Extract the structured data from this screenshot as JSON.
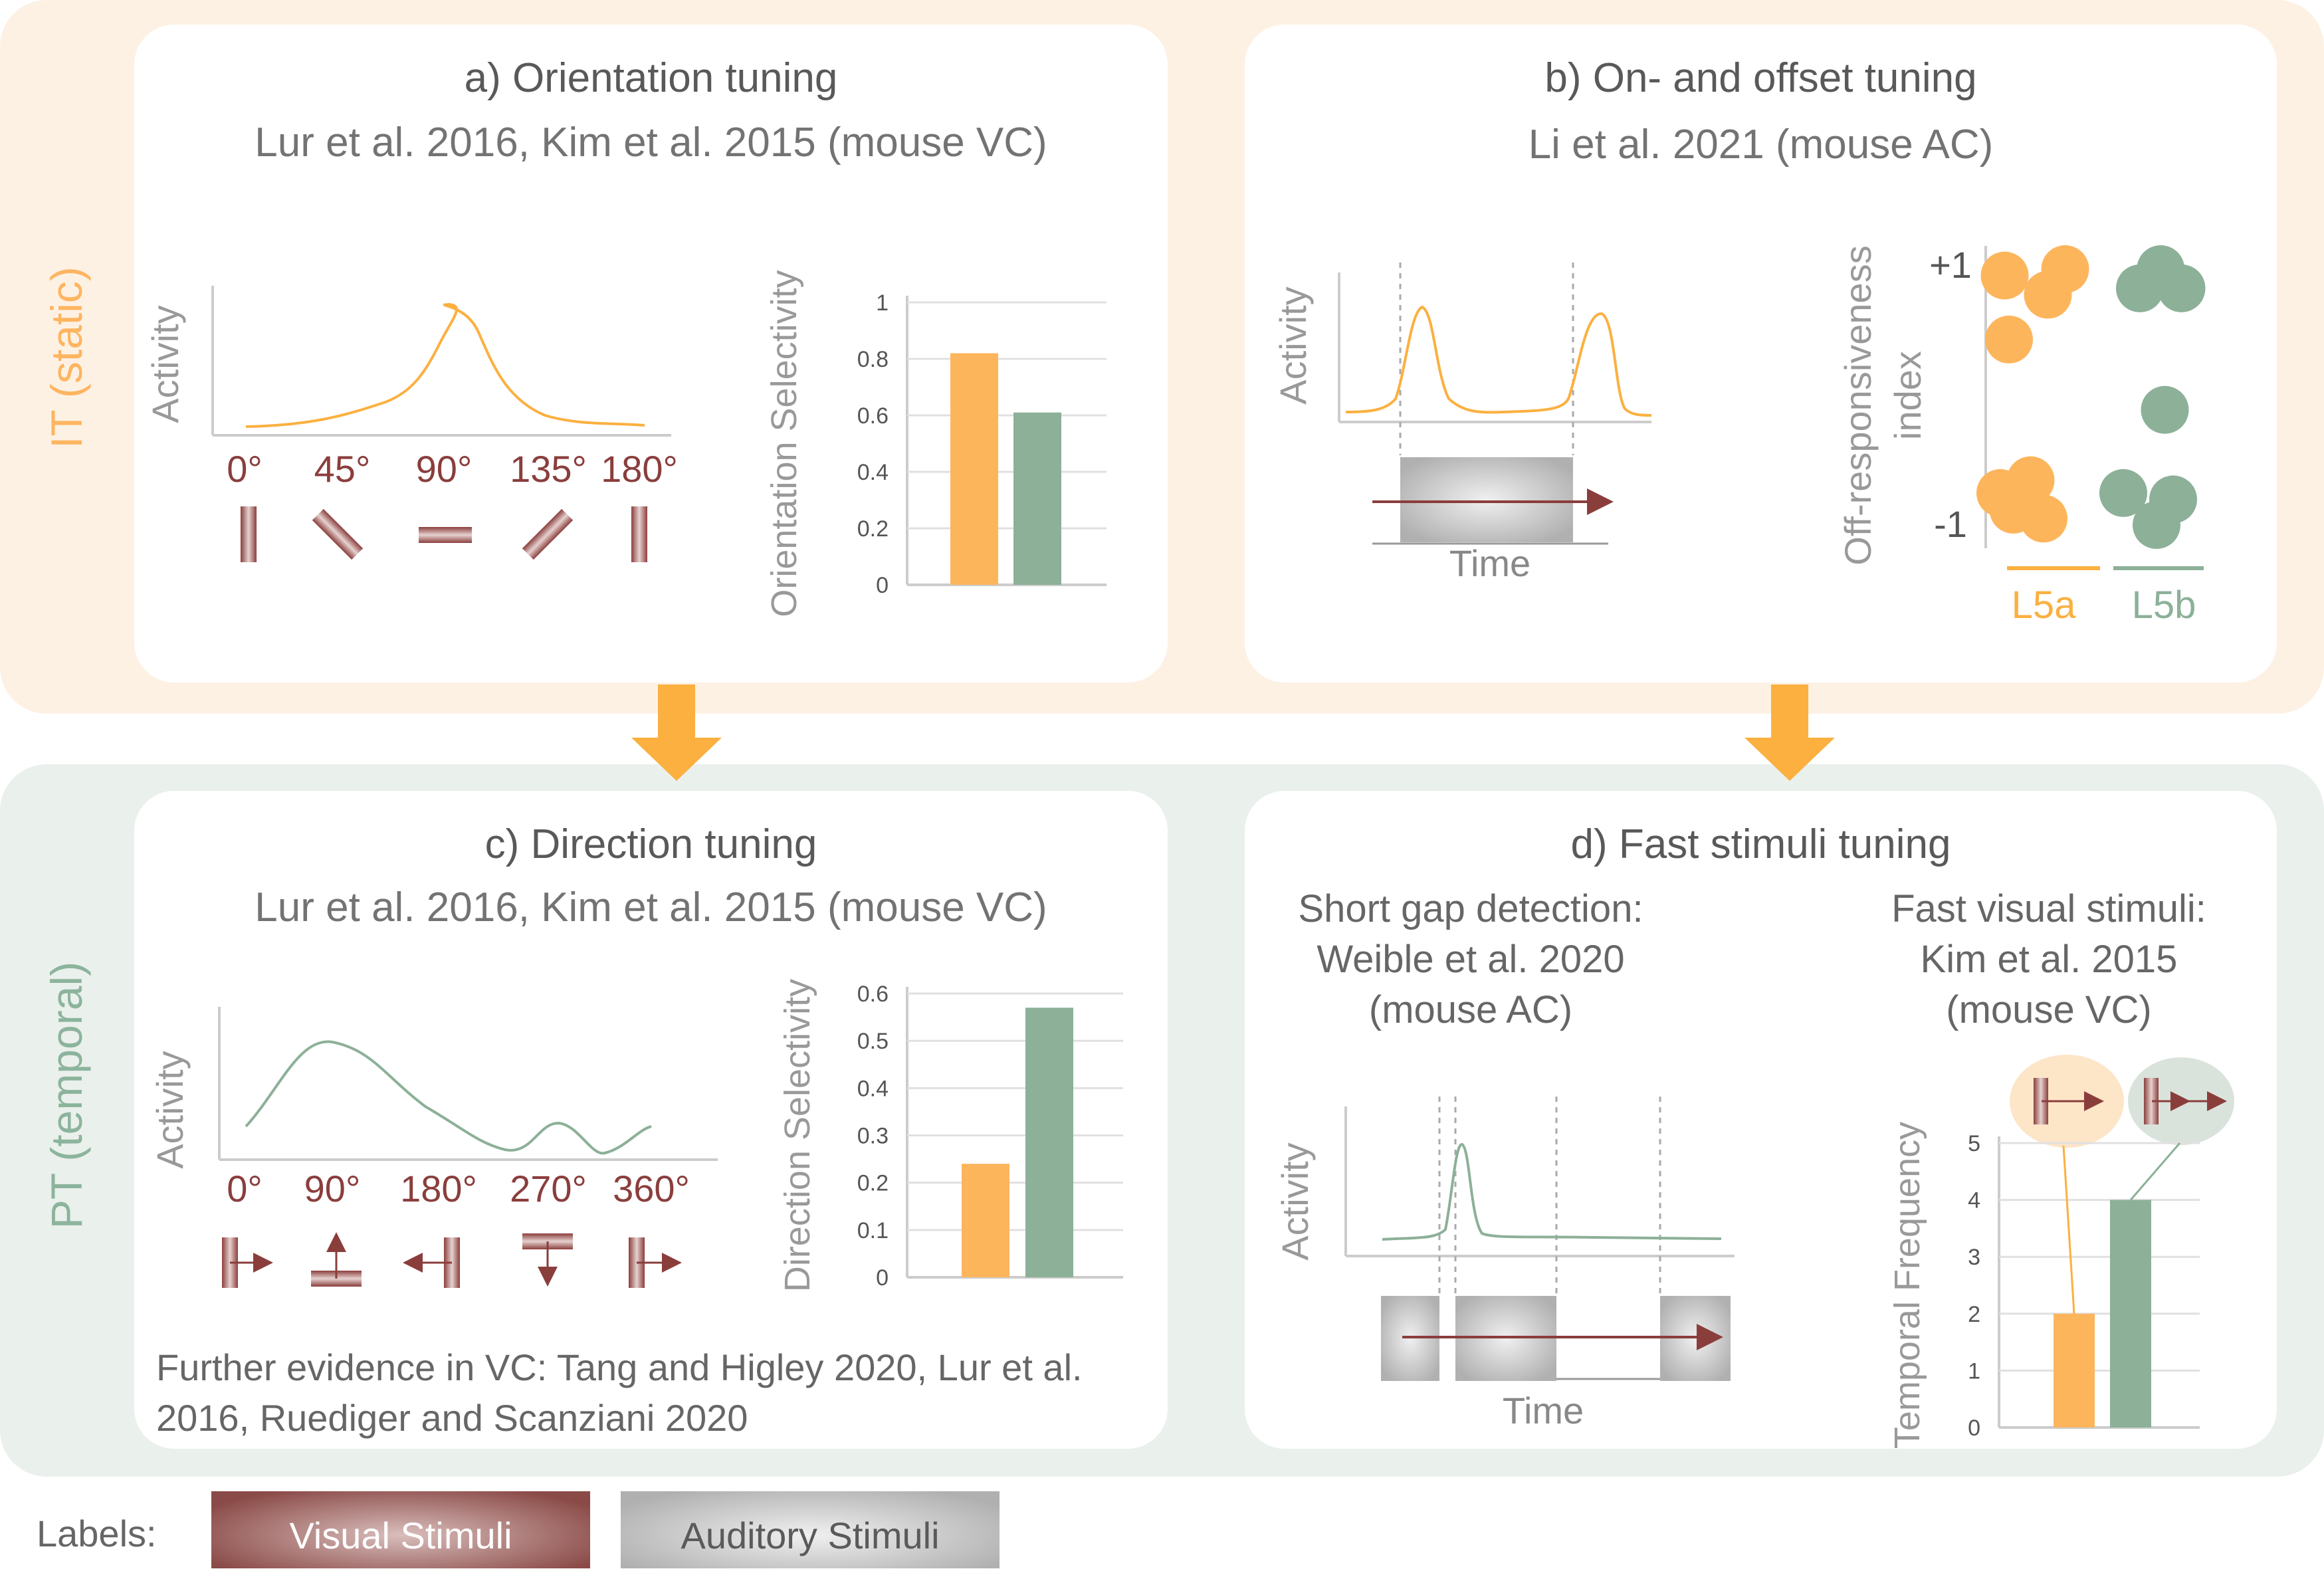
{
  "bands": {
    "it": {
      "label": "IT (static)",
      "color": "#fdb560"
    },
    "pt": {
      "label": "PT (temporal)",
      "color": "#8cb49c"
    }
  },
  "colors": {
    "orange": "#fdb55c",
    "green": "#8cb098",
    "maroon": "#8a3e3c",
    "visual": "#8f5552",
    "auditory": "#b5b5b5"
  },
  "panel_a": {
    "title": "a) Orientation tuning",
    "subtitle": "Lur et al. 2016, Kim et al. 2015 (mouse VC)",
    "curve_ylabel": "Activity",
    "angle_labels": [
      "0°",
      "45°",
      "90°",
      "135°",
      "180°"
    ],
    "stimulus_icons": [
      "vertical-bar-icon",
      "diagonal-bar-icon",
      "horizontal-bar-icon",
      "diagonal-bar-icon",
      "vertical-bar-icon"
    ]
  },
  "panel_b": {
    "title": "b) On- and offset tuning",
    "subtitle": "Li et al. 2021 (mouse AC)",
    "curve_ylabel": "Activity",
    "curve_xlabel": "Time",
    "scatter_ylabel_line1": "Off-responsiveness",
    "scatter_ylabel_line2": "index",
    "scatter_ticks": [
      "+1",
      "-1"
    ],
    "groups": [
      "L5a",
      "L5b"
    ]
  },
  "panel_c": {
    "title": "c) Direction tuning",
    "subtitle": "Lur et al. 2016, Kim et al. 2015 (mouse VC)",
    "curve_ylabel": "Activity",
    "angle_labels": [
      "0°",
      "90°",
      "180°",
      "270°",
      "360°"
    ],
    "stimulus_icons": [
      "bar-arrow-right-icon",
      "bar-arrow-up-icon",
      "bar-arrow-left-icon",
      "bar-arrow-down-icon",
      "bar-arrow-right-icon"
    ],
    "note_line1": "Further evidence in VC: Tang and Higley 2020, Lur et al.",
    "note_line2": "2016, Ruediger and Scanziani 2020"
  },
  "panel_d": {
    "title": "d) Fast stimuli tuning",
    "left_line1": "Short gap detection:",
    "left_line2": "Weible et al. 2020",
    "left_line3": "(mouse AC)",
    "right_line1": "Fast visual stimuli:",
    "right_line2": "Kim et al. 2015",
    "right_line3": "(mouse VC)",
    "curve_ylabel": "Activity",
    "curve_xlabel": "Time"
  },
  "legend": {
    "label": "Labels:",
    "visual": "Visual Stimuli",
    "auditory": "Auditory Stimuli"
  },
  "chart_data": [
    {
      "id": "orientation-selectivity",
      "type": "bar",
      "ylabel": "Orientation Selectivity",
      "ylim": [
        0,
        1
      ],
      "yticks": [
        0,
        0.2,
        0.4,
        0.6,
        0.8,
        1
      ],
      "ytick_labels": [
        "0",
        "0.2",
        "0.4",
        "0.6",
        "0.8",
        "1"
      ],
      "series": [
        {
          "values": [
            0.82
          ],
          "color": "#fdb55c"
        },
        {
          "values": [
            0.61
          ],
          "color": "#8cb098"
        }
      ]
    },
    {
      "id": "direction-selectivity",
      "type": "bar",
      "ylabel": "Direction Selectivity",
      "ylim": [
        0,
        0.6
      ],
      "yticks": [
        0,
        0.1,
        0.2,
        0.3,
        0.4,
        0.5,
        0.6
      ],
      "ytick_labels": [
        "0",
        "0.1",
        "0.2",
        "0.3",
        "0.4",
        "0.5",
        "0.6"
      ],
      "series": [
        {
          "values": [
            0.24
          ],
          "color": "#fdb55c"
        },
        {
          "values": [
            0.57
          ],
          "color": "#8cb098"
        }
      ]
    },
    {
      "id": "temporal-frequency",
      "type": "bar",
      "ylabel": "Temporal Frequency",
      "ylim": [
        0,
        5
      ],
      "yticks": [
        0,
        1,
        2,
        3,
        4,
        5
      ],
      "ytick_labels": [
        "0",
        "1",
        "2",
        "3",
        "4",
        "5"
      ],
      "series": [
        {
          "values": [
            2
          ],
          "color": "#fdb55c"
        },
        {
          "values": [
            4
          ],
          "color": "#8cb098"
        }
      ]
    },
    {
      "id": "off-responsiveness",
      "type": "scatter",
      "ylim": [
        -1,
        1
      ],
      "categories": [
        "L5a",
        "L5b"
      ],
      "series": [
        {
          "group": "L5a",
          "color": "#fdb55c",
          "points": [
            [
              0.05,
              0.95
            ],
            [
              0.55,
              0.8
            ],
            [
              0.75,
              1.0
            ],
            [
              0.1,
              0.45
            ],
            [
              0.0,
              -0.75
            ],
            [
              0.35,
              -0.65
            ],
            [
              0.5,
              -0.95
            ],
            [
              0.15,
              -0.88
            ]
          ]
        },
        {
          "group": "L5b",
          "color": "#8cb098",
          "points": [
            [
              0.2,
              0.85
            ],
            [
              0.45,
              1.0
            ],
            [
              0.7,
              0.85
            ],
            [
              0.5,
              -0.1
            ],
            [
              0.0,
              -0.75
            ],
            [
              0.6,
              -0.8
            ],
            [
              0.4,
              -1.0
            ]
          ]
        }
      ]
    }
  ]
}
